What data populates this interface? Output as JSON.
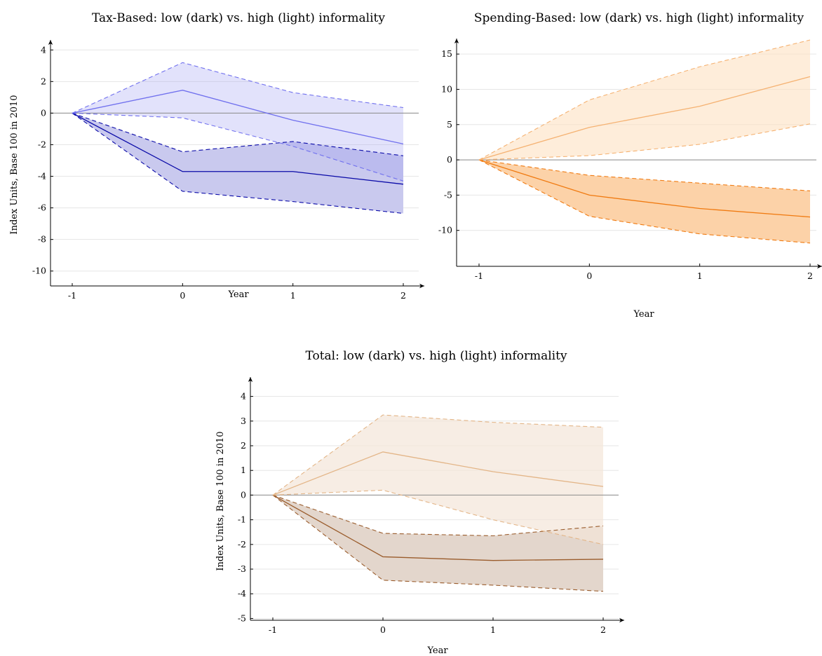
{
  "chart_data": [
    {
      "type": "line",
      "title": "Tax-Based: low (dark) vs. high (light) informality",
      "xlabel": "Year",
      "ylabel": "Index Units, Base 100 in 2010",
      "x": [
        -1,
        0,
        1,
        2
      ],
      "xticks": [
        "-1",
        "0",
        "1",
        "2"
      ],
      "yticks": [
        "4",
        "2",
        "0",
        "-2",
        "-4",
        "-6",
        "-8",
        "-10"
      ],
      "ylim": [
        -10.5,
        4.5
      ],
      "grid": true,
      "series": [
        {
          "values": [
            0,
            -3.7,
            -3.7,
            -4.5
          ],
          "lower": [
            0,
            -4.95,
            -5.6,
            -6.35
          ],
          "upper": [
            0,
            -2.45,
            -1.8,
            -2.7
          ],
          "color": "#0a0aa8",
          "fill": "#c9c9ee",
          "opacity": 1
        },
        {
          "values": [
            0,
            1.45,
            -0.45,
            -1.95
          ],
          "lower": [
            0,
            -0.3,
            -2.1,
            -4.3
          ],
          "upper": [
            0,
            3.2,
            1.3,
            0.35
          ],
          "color": "#7070ee",
          "fill": "#9898f0",
          "opacity": 0.28
        }
      ]
    },
    {
      "type": "line",
      "title": "Spending-Based: low (dark) vs. high (light) informality",
      "xlabel": "Year",
      "ylabel": "",
      "x": [
        -1,
        0,
        1,
        2
      ],
      "xticks": [
        "-1",
        "0",
        "1",
        "2"
      ],
      "yticks": [
        "15",
        "10",
        "5",
        "0",
        "-5",
        "-10"
      ],
      "ylim": [
        -14.5,
        17
      ],
      "grid": true,
      "series": [
        {
          "values": [
            0,
            -5,
            -6.9,
            -8.1
          ],
          "lower": [
            0,
            -8,
            -10.5,
            -11.8
          ],
          "upper": [
            0,
            -2.2,
            -3.3,
            -4.4
          ],
          "color": "#f07a10",
          "fill": "#fcd2a8",
          "opacity": 1
        },
        {
          "values": [
            0,
            4.6,
            7.6,
            11.8
          ],
          "lower": [
            0,
            0.6,
            2.2,
            5.1
          ],
          "upper": [
            0,
            8.5,
            13.2,
            17
          ],
          "color": "#f5b272",
          "fill": "#fde1c2",
          "opacity": 0.6
        }
      ]
    },
    {
      "type": "line",
      "title": "Total: low (dark) vs. high (light) informality",
      "xlabel": "Year",
      "ylabel": "Index Units, Base 100 in 2010",
      "x": [
        -1,
        0,
        1,
        2
      ],
      "xticks": [
        "-1",
        "0",
        "1",
        "2"
      ],
      "yticks": [
        "4",
        "3",
        "2",
        "1",
        "0",
        "-1",
        "-2",
        "-3",
        "-4",
        "-5"
      ],
      "ylim": [
        -5.3,
        4.5
      ],
      "grid": true,
      "series": [
        {
          "values": [
            0,
            -2.5,
            -2.65,
            -2.6
          ],
          "lower": [
            0,
            -3.45,
            -3.65,
            -3.9
          ],
          "upper": [
            0,
            -1.55,
            -1.65,
            -1.25
          ],
          "color": "#9a5c2c",
          "fill": "#e3d6cc",
          "opacity": 1
        },
        {
          "values": [
            0,
            1.75,
            0.95,
            0.35
          ],
          "lower": [
            0,
            0.2,
            -1,
            -2
          ],
          "upper": [
            0,
            3.25,
            2.95,
            2.75
          ],
          "color": "#e3b587",
          "fill": "#f3e6d8",
          "opacity": 0.7
        }
      ]
    }
  ]
}
